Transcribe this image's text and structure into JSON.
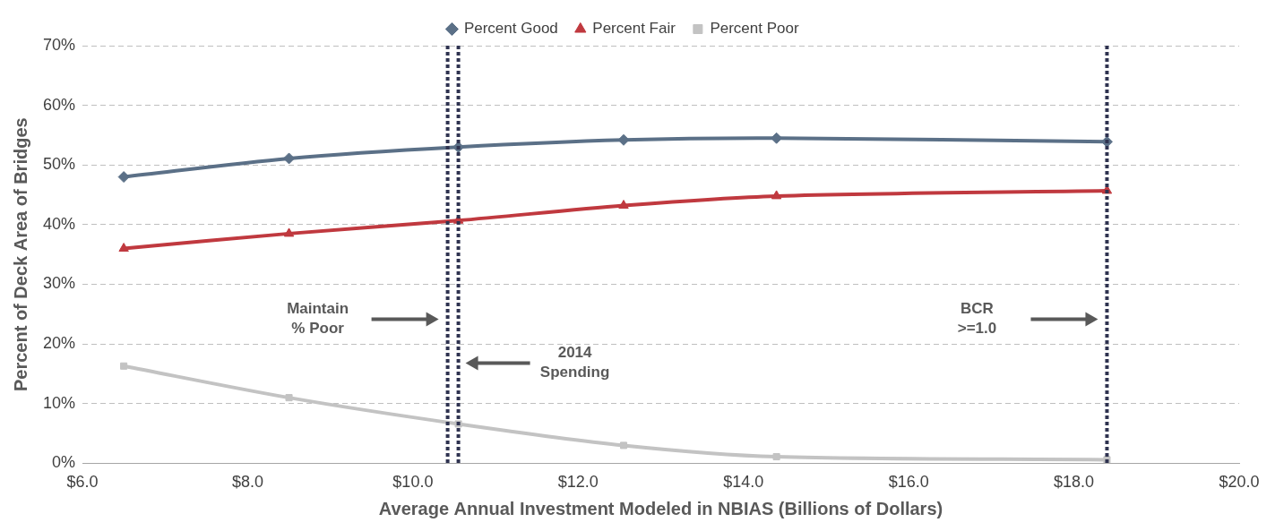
{
  "chart_data": {
    "type": "line",
    "x_label": "Average Annual Investment Modeled in NBIAS (Billions of Dollars)",
    "y_label": "Percent of Deck Area of Bridges",
    "x": [
      6.5,
      8.5,
      10.55,
      12.55,
      14.4,
      18.4
    ],
    "series": [
      {
        "name": "Percent Good",
        "color": "#5b7087",
        "marker": "diamond",
        "values": [
          48,
          51.1,
          53,
          54.2,
          54.5,
          53.9
        ]
      },
      {
        "name": "Percent Fair",
        "color": "#c0393f",
        "marker": "triangle",
        "values": [
          36,
          38.5,
          40.7,
          43.2,
          44.8,
          45.7
        ]
      },
      {
        "name": "Percent Poor",
        "color": "#c3c3c3",
        "marker": "square",
        "values": [
          16.3,
          11,
          6.6,
          3,
          1.1,
          0.6
        ]
      }
    ],
    "xlim": [
      6,
      20
    ],
    "xticks": [
      {
        "value": 6,
        "label": "$6.0"
      },
      {
        "value": 8,
        "label": "$8.0"
      },
      {
        "value": 10,
        "label": "$10.0"
      },
      {
        "value": 12,
        "label": "$12.0"
      },
      {
        "value": 14,
        "label": "$14.0"
      },
      {
        "value": 16,
        "label": "$16.0"
      },
      {
        "value": 18,
        "label": "$18.0"
      },
      {
        "value": 20,
        "label": "$20.0"
      }
    ],
    "ylim": [
      0,
      70
    ],
    "yticks": [
      {
        "value": 0,
        "label": "0%"
      },
      {
        "value": 10,
        "label": "10%"
      },
      {
        "value": 20,
        "label": "20%"
      },
      {
        "value": 30,
        "label": "30%"
      },
      {
        "value": 40,
        "label": "40%"
      },
      {
        "value": 50,
        "label": "50%"
      },
      {
        "value": 60,
        "label": "60%"
      },
      {
        "value": 70,
        "label": "70%"
      }
    ],
    "grid": true,
    "legend": "top",
    "annotations": [
      {
        "text": [
          "Maintain",
          "% Poor"
        ],
        "x": 10.42
      },
      {
        "text": [
          "2014",
          "Spending"
        ],
        "x": 10.55
      },
      {
        "text": [
          "BCR",
          ">=1.0"
        ],
        "x": 18.4
      }
    ]
  }
}
